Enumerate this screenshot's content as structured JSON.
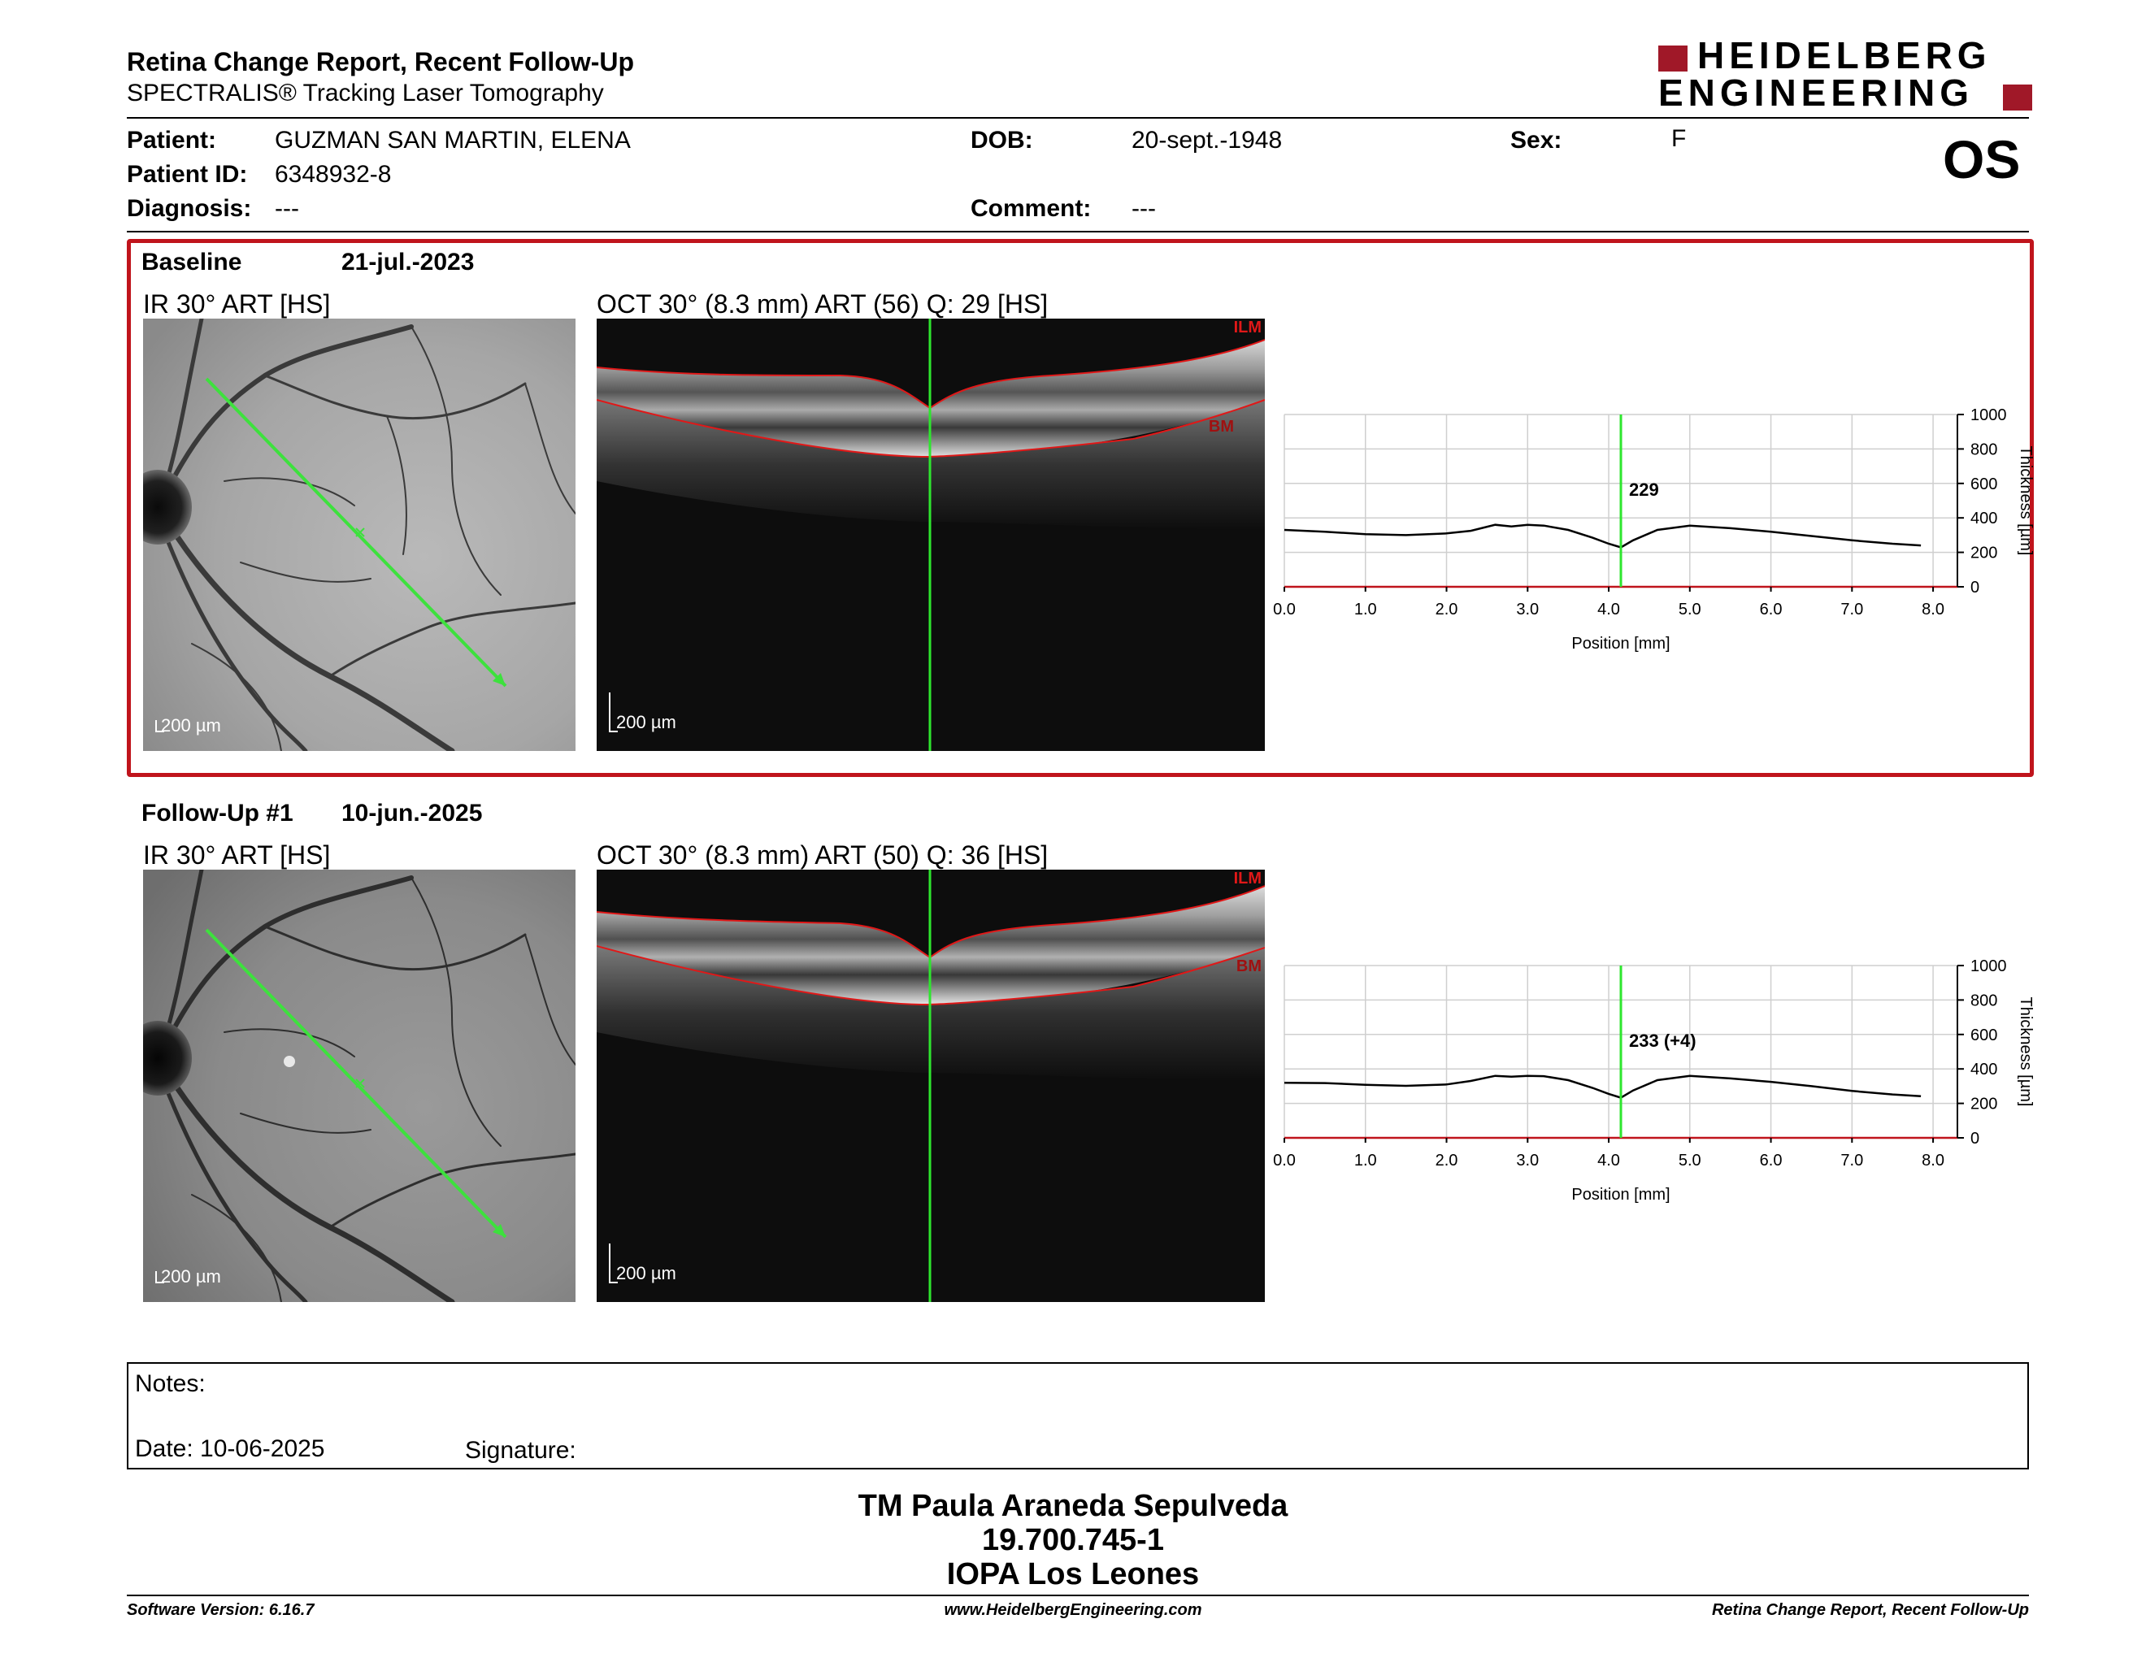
{
  "header": {
    "title": "Retina Change Report, Recent Follow-Up",
    "subtitle": "SPECTRALIS® Tracking Laser Tomography",
    "logo_line1": "HEIDELBERG",
    "logo_line2": "ENGINEERING",
    "brand_color": "#a01828"
  },
  "patient": {
    "patient_label": "Patient:",
    "patient_value": "GUZMAN SAN MARTIN, ELENA",
    "id_label": "Patient ID:",
    "id_value": "6348932-8",
    "diagnosis_label": "Diagnosis:",
    "diagnosis_value": "---",
    "dob_label": "DOB:",
    "dob_value": "20-sept.-1948",
    "comment_label": "Comment:",
    "comment_value": "---",
    "sex_label": "Sex:",
    "sex_value": "F",
    "eye": "OS"
  },
  "baseline": {
    "label": "Baseline",
    "date": "21-jul.-2023",
    "ir_caption": "IR 30° ART [HS]",
    "oct_caption": "OCT 30° (8.3 mm) ART (56) Q: 29 [HS]",
    "ir_scale": "200 µm",
    "oct_scale": "200 µm",
    "ilm": "ILM",
    "bm": "BM"
  },
  "followup": {
    "label": "Follow-Up #1",
    "date": "10-jun.-2025",
    "ir_caption": "IR 30° ART [HS]",
    "oct_caption": "OCT 30° (8.3 mm) ART (50) Q: 36 [HS]",
    "ir_scale": "200 µm",
    "oct_scale": "200 µm",
    "ilm": "ILM",
    "bm": "BM"
  },
  "chart_data": [
    {
      "type": "line",
      "xlabel": "Position [mm]",
      "ylabel": "Thickness [µm]",
      "xlim": [
        0,
        8.3
      ],
      "ylim": [
        0,
        1000
      ],
      "x_ticks": [
        "0.0",
        "1.0",
        "2.0",
        "3.0",
        "4.0",
        "5.0",
        "6.0",
        "7.0",
        "8.0"
      ],
      "y_ticks": [
        "0",
        "200",
        "400",
        "600",
        "800",
        "1000"
      ],
      "marker_x": 4.15,
      "marker_label": "229",
      "grid": true,
      "series": [
        {
          "x": [
            0,
            0.5,
            1,
            1.5,
            2,
            2.3,
            2.6,
            2.8,
            3,
            3.2,
            3.5,
            3.8,
            4.0,
            4.15,
            4.3,
            4.6,
            5.0,
            5.5,
            6.0,
            6.5,
            7.0,
            7.5,
            7.85
          ],
          "values": [
            330,
            320,
            305,
            300,
            310,
            325,
            360,
            350,
            360,
            355,
            330,
            285,
            250,
            229,
            270,
            330,
            355,
            340,
            320,
            295,
            270,
            250,
            240
          ]
        }
      ]
    },
    {
      "type": "line",
      "xlabel": "Position [mm]",
      "ylabel": "Thickness [µm]",
      "xlim": [
        0,
        8.3
      ],
      "ylim": [
        0,
        1000
      ],
      "x_ticks": [
        "0.0",
        "1.0",
        "2.0",
        "3.0",
        "4.0",
        "5.0",
        "6.0",
        "7.0",
        "8.0"
      ],
      "y_ticks": [
        "0",
        "200",
        "400",
        "600",
        "800",
        "1000"
      ],
      "marker_x": 4.15,
      "marker_label": "233 (+4)",
      "grid": true,
      "series": [
        {
          "x": [
            0,
            0.5,
            1,
            1.5,
            2,
            2.3,
            2.6,
            2.8,
            3,
            3.2,
            3.5,
            3.8,
            4.0,
            4.15,
            4.3,
            4.6,
            5.0,
            5.5,
            6.0,
            6.5,
            7.0,
            7.5,
            7.85
          ],
          "values": [
            320,
            318,
            308,
            302,
            310,
            330,
            360,
            355,
            360,
            358,
            335,
            290,
            255,
            233,
            275,
            335,
            360,
            345,
            325,
            300,
            272,
            252,
            242
          ]
        }
      ]
    }
  ],
  "notes": {
    "notes_label": "Notes:",
    "date_label": "Date: 10-06-2025",
    "signature_label": "Signature:"
  },
  "signer": {
    "name": "TM Paula Araneda Sepulveda",
    "rut": "19.700.745-1",
    "org": "IOPA Los Leones"
  },
  "footer": {
    "software": "Software Version: 6.16.7",
    "website": "www.HeidelbergEngineering.com",
    "report": "Retina Change Report, Recent Follow-Up"
  }
}
